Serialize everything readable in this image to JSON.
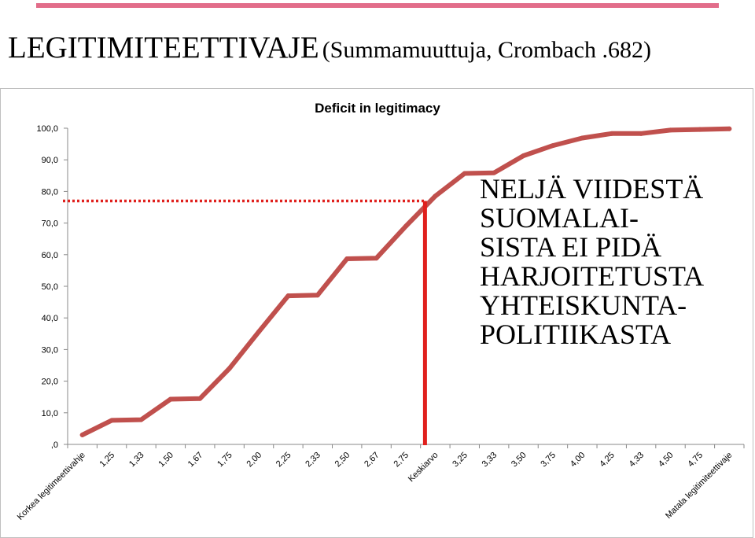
{
  "slide": {
    "title_main": "LEGITIMITEETTIVAJE",
    "title_sub": "(Summamuuttuja, Crombach .682)",
    "accent_color": "#e26d8a"
  },
  "annotation": {
    "lines": [
      "NELJÄ VIIDESTÄ",
      "SUOMALAI-",
      "SISTA EI PIDÄ",
      "HARJOITETUSTA",
      "YHTEISKUNTA-",
      "POLITIIKASTA"
    ]
  },
  "chart_data": {
    "type": "line",
    "title": "Deficit  in legitimacy",
    "categories": [
      "Korkea legitimeettivahje",
      "1,25",
      "1,33",
      "1,50",
      "1,67",
      "1,75",
      "2,00",
      "2,25",
      "2,33",
      "2,50",
      "2,67",
      "2,75",
      "Keskiarvo",
      "3,25",
      "3,33",
      "3,50",
      "3,75",
      "4,00",
      "4,25",
      "4,33",
      "4,50",
      "4,75",
      "Matala legitimiteettivaje"
    ],
    "y_tick_labels": [
      ",0",
      "10,0",
      "20,0",
      "30,0",
      "40,0",
      "50,0",
      "60,0",
      "70,0",
      "80,0",
      "90,0",
      "100,0"
    ],
    "ylim": [
      0,
      100
    ],
    "series": [
      {
        "values": [
          3,
          7.6,
          7.8,
          14.3,
          14.5,
          24,
          35.6,
          47,
          47.2,
          58.7,
          58.9,
          69,
          78.5,
          85.7,
          85.9,
          91.3,
          94.5,
          96.9,
          98.3,
          98.3,
          99.4,
          99.6,
          99.8
        ],
        "color": "#c0504d"
      }
    ],
    "reference": {
      "y_value": 77,
      "category": "Keskiarvo",
      "horizontal_color": "#e0201d",
      "vertical_color": "#e0201d"
    },
    "grid": false,
    "legend": "none"
  }
}
